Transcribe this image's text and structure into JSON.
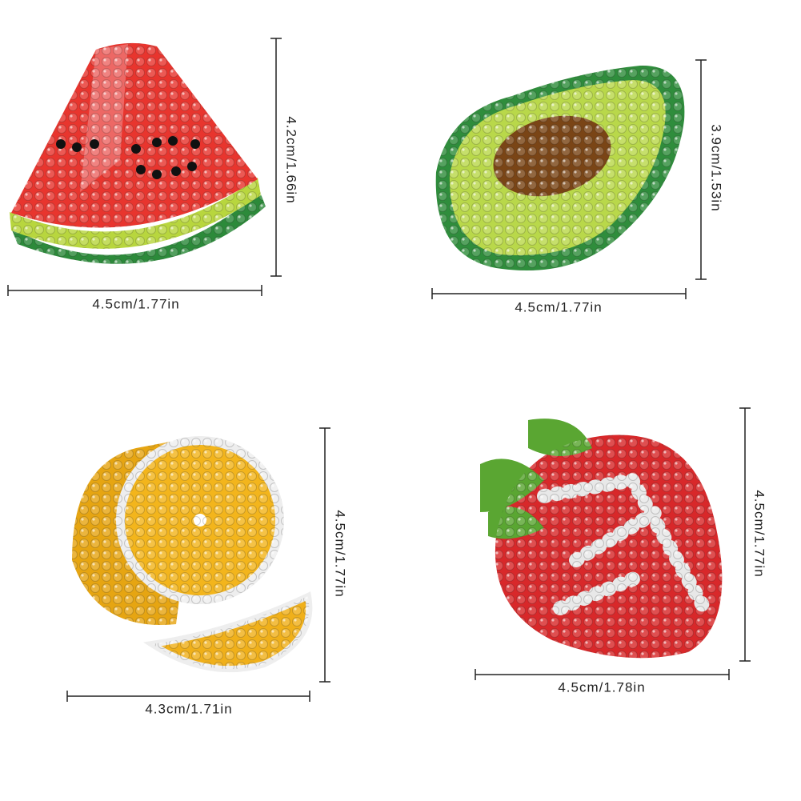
{
  "stickers": [
    {
      "width": "4.5cm/1.77in",
      "height": "4.2cm/1.66in"
    },
    {
      "width": "4.5cm/1.77in",
      "height": "3.9cm/1.53in"
    },
    {
      "width": "4.3cm/1.71in",
      "height": "4.5cm/1.77in"
    },
    {
      "width": "4.5cm/1.78in",
      "height": "4.5cm/1.77in"
    }
  ]
}
